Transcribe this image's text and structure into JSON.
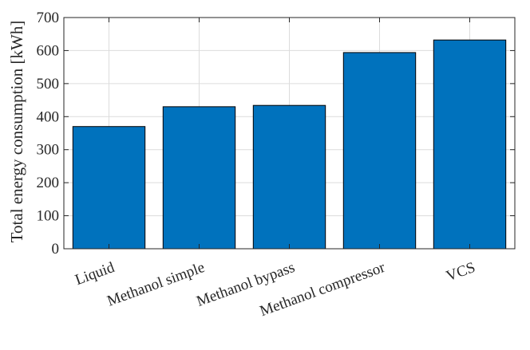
{
  "chart_data": {
    "type": "bar",
    "categories": [
      "Liquid",
      "Methanol simple",
      "Methanol bypass",
      "Methanol compressor",
      "VCS"
    ],
    "values": [
      370,
      430,
      434,
      594,
      632
    ],
    "title": "",
    "xlabel": "",
    "ylabel": "Total energy consumption [kWh]",
    "ylim": [
      0,
      700
    ],
    "yticks": [
      0,
      100,
      200,
      300,
      400,
      500,
      600,
      700
    ],
    "grid": true,
    "bar_color": "#0072BD",
    "bar_edge_color": "#000000"
  }
}
